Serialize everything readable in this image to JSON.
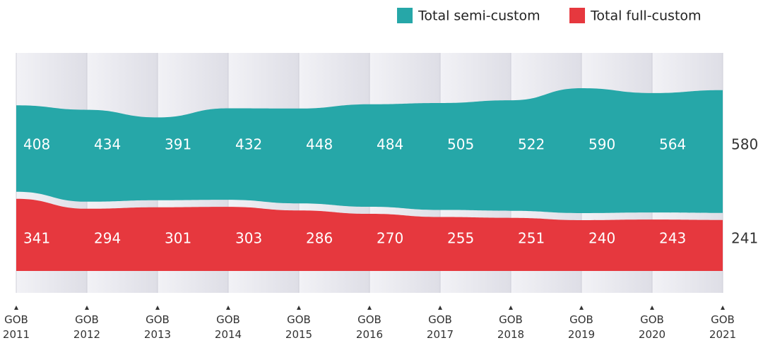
{
  "legend": {
    "items": [
      {
        "label": "Total semi-custom",
        "color": "#26a7a8"
      },
      {
        "label": "Total full-custom",
        "color": "#e6383e"
      }
    ]
  },
  "chart_data": {
    "type": "area",
    "categories": [
      "GOB 2011",
      "GOB 2012",
      "GOB 2013",
      "GOB 2014",
      "GOB 2015",
      "GOB 2016",
      "GOB 2017",
      "GOB 2018",
      "GOB 2019",
      "GOB 2020",
      "GOB 2021"
    ],
    "series": [
      {
        "name": "Total semi-custom",
        "color": "#26a7a8",
        "values": [
          408,
          434,
          391,
          432,
          448,
          484,
          505,
          522,
          590,
          564,
          580
        ]
      },
      {
        "name": "Total full-custom",
        "color": "#e6383e",
        "values": [
          341,
          294,
          301,
          303,
          286,
          270,
          255,
          251,
          240,
          243,
          241
        ]
      }
    ],
    "grid": true,
    "legend_position": "top-right"
  }
}
